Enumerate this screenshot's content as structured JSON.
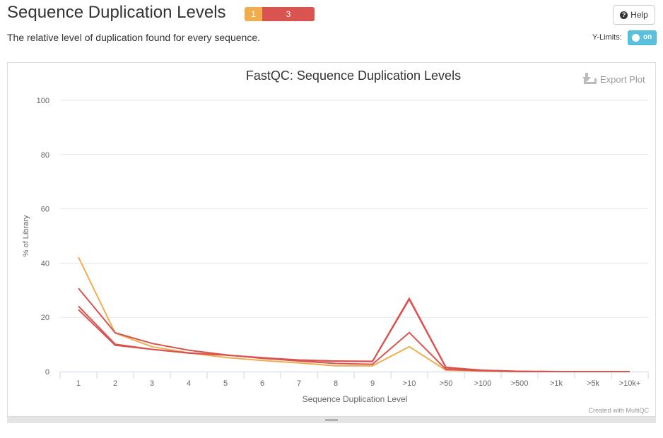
{
  "header": {
    "title": "Sequence Duplication Levels",
    "badge_warn": "1",
    "badge_fail": "3",
    "subtitle": "The relative level of duplication found for every sequence.",
    "help_label": "Help",
    "ylimits_label": "Y-Limits:",
    "toggle_label": "on"
  },
  "colors": {
    "warn": "#f0ad4e",
    "fail": "#d9534f",
    "toggle": "#5bc0de"
  },
  "export_label": "Export Plot",
  "credit": "Created with MultiQC",
  "chart_data": {
    "type": "line",
    "title": "FastQC: Sequence Duplication Levels",
    "xlabel": "Sequence Duplication Level",
    "ylabel": "% of Library",
    "categories": [
      "1",
      "2",
      "3",
      "4",
      "5",
      "6",
      "7",
      "8",
      "9",
      ">10",
      ">50",
      ">100",
      ">500",
      ">1k",
      ">5k",
      ">10k+"
    ],
    "ylim": [
      0,
      100
    ],
    "yticks": [
      0,
      20,
      40,
      60,
      80,
      100
    ],
    "grid": true,
    "legend": "none",
    "series": [
      {
        "color": "#f0ad4e",
        "values": [
          42.2,
          14.2,
          9.2,
          6.9,
          5.2,
          4.1,
          3.2,
          2.1,
          2.1,
          9.2,
          0.5,
          0.2,
          0.0,
          0.0,
          0.0,
          0.0
        ]
      },
      {
        "color": "#d9534f",
        "values": [
          30.7,
          14.3,
          10.4,
          7.9,
          6.2,
          4.9,
          3.9,
          3.0,
          2.7,
          14.4,
          0.8,
          0.3,
          0.0,
          0.0,
          0.0,
          0.0
        ]
      },
      {
        "color": "#d9534f",
        "values": [
          24.1,
          10.1,
          8.2,
          6.9,
          6.1,
          5.1,
          4.3,
          3.9,
          3.8,
          27.0,
          1.6,
          0.5,
          0.1,
          0.0,
          0.0,
          0.0
        ]
      },
      {
        "color": "#d9534f",
        "values": [
          22.8,
          9.7,
          8.2,
          6.8,
          6.1,
          5.1,
          4.2,
          3.8,
          3.7,
          26.6,
          1.4,
          0.5,
          0.1,
          0.0,
          0.0,
          0.0
        ]
      }
    ]
  }
}
